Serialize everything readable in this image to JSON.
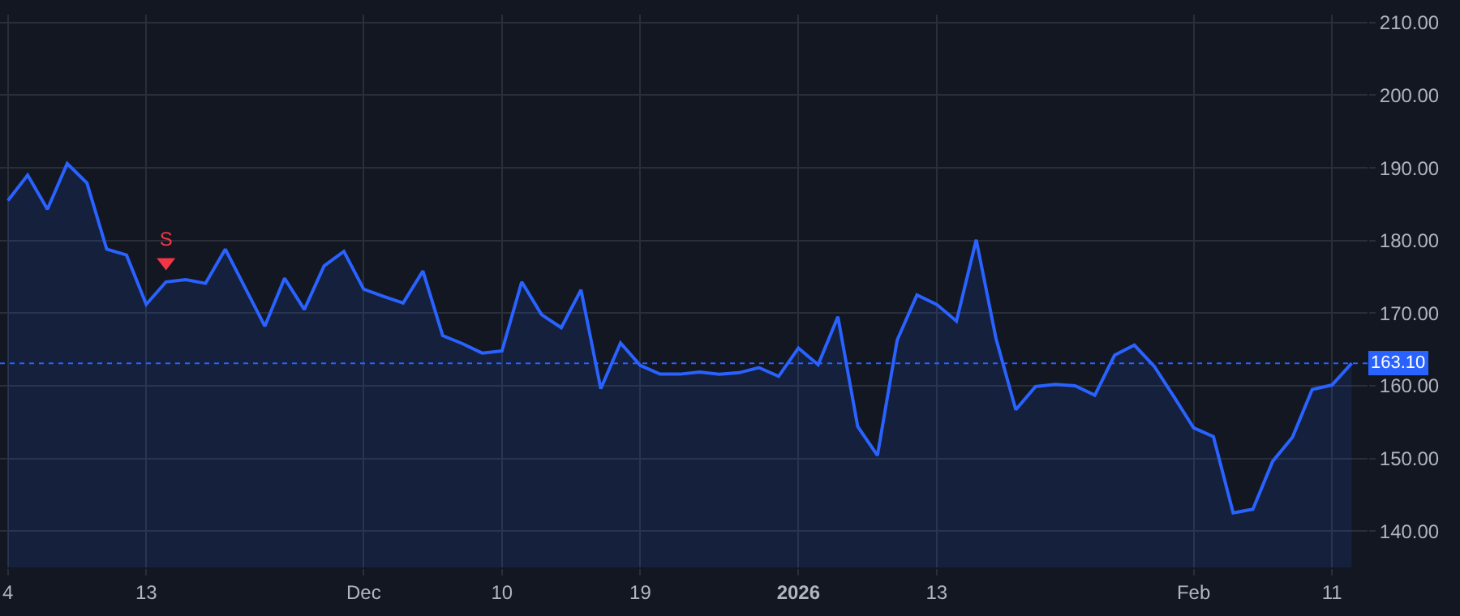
{
  "chart_data": {
    "type": "area",
    "categories": [
      "4",
      null,
      null,
      null,
      null,
      null,
      null,
      "13",
      null,
      null,
      null,
      null,
      null,
      null,
      null,
      null,
      null,
      null,
      "Dec",
      null,
      null,
      null,
      null,
      null,
      null,
      "10",
      null,
      null,
      null,
      null,
      null,
      null,
      "19",
      null,
      null,
      null,
      null,
      null,
      null,
      null,
      "2026",
      null,
      null,
      null,
      null,
      null,
      null,
      "13",
      null,
      null,
      null,
      null,
      null,
      null,
      null,
      null,
      null,
      null,
      null,
      null,
      "Feb",
      null,
      null,
      null,
      null,
      null,
      null,
      "11",
      null
    ],
    "series": [
      {
        "color": "#2962ff",
        "values": [
          185.5,
          189.0,
          184.3,
          190.6,
          187.9,
          178.8,
          178.0,
          171.2,
          174.3,
          174.6,
          174.1,
          178.8,
          173.5,
          168.2,
          174.8,
          170.5,
          176.5,
          178.5,
          173.3,
          172.3,
          171.4,
          175.8,
          166.9,
          165.8,
          164.5,
          164.8,
          174.3,
          169.8,
          168.0,
          173.2,
          159.6,
          165.9,
          162.8,
          161.6,
          161.6,
          161.9,
          161.6,
          161.8,
          162.5,
          161.3,
          165.2,
          162.9,
          169.5,
          154.4,
          150.4,
          166.3,
          172.5,
          171.2,
          168.9,
          180.1,
          166.5,
          156.7,
          159.9,
          160.2,
          160.0,
          158.7,
          164.2,
          165.6,
          162.7,
          158.5,
          154.2,
          153.0,
          142.5,
          143.0,
          149.6,
          152.9,
          159.5,
          160.1,
          163.1
        ]
      },
      {
        "type": "scatter",
        "color": "#f23645",
        "marker": "triangle",
        "values": [
          null,
          null,
          null,
          null,
          null,
          null,
          null,
          null,
          177.0,
          null,
          null,
          null,
          null,
          null,
          null,
          null,
          null,
          null,
          null,
          null,
          null,
          null,
          null,
          null,
          null,
          null,
          null,
          null,
          null,
          null,
          null,
          null,
          null,
          null,
          null,
          null,
          null,
          null,
          null,
          null,
          null,
          null,
          null,
          null,
          null,
          null,
          null,
          null,
          null,
          null,
          null,
          null,
          null,
          null,
          null,
          null,
          null,
          null,
          null,
          null,
          null,
          null,
          null,
          null,
          null,
          null,
          null,
          null,
          null
        ],
        "value_labels": [
          null,
          null,
          null,
          null,
          null,
          null,
          null,
          null,
          "S",
          null,
          null,
          null,
          null,
          null,
          null,
          null,
          null,
          null,
          null,
          null,
          null,
          null,
          null,
          null,
          null,
          null,
          null,
          null,
          null,
          null,
          null,
          null,
          null,
          null,
          null,
          null,
          null,
          null,
          null,
          null,
          null,
          null,
          null,
          null,
          null,
          null,
          null,
          null,
          null,
          null,
          null,
          null,
          null,
          null,
          null,
          null,
          null,
          null,
          null,
          null,
          null,
          null,
          null,
          null,
          null,
          null,
          null,
          null,
          null
        ]
      }
    ],
    "ylim": [
      135,
      211.1
    ],
    "yticks": [
      {
        "value": 140,
        "label": "140.00"
      },
      {
        "value": 150,
        "label": "150.00"
      },
      {
        "value": 160,
        "label": "160.00"
      },
      {
        "value": 170,
        "label": "170.00"
      },
      {
        "value": 180,
        "label": "180.00"
      },
      {
        "value": 190,
        "label": "190.00"
      },
      {
        "value": 200,
        "label": "200.00"
      },
      {
        "value": 210,
        "label": "210.00"
      }
    ],
    "ref_lines": [
      {
        "axis": "y",
        "value": 163.1,
        "label": "163.10",
        "color": "#2962ff",
        "line_style": "dotted"
      }
    ],
    "grid": true,
    "marker": "none",
    "line_style": "solid"
  }
}
